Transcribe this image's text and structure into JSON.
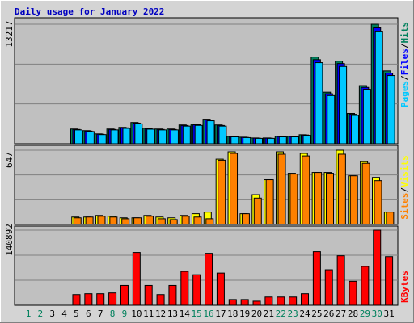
{
  "chart_data": [
    {
      "type": "bar",
      "title": "Daily usage for January 2022",
      "ylim": [
        0,
        13217
      ],
      "yticks": [
        13217
      ],
      "grid": true,
      "series": [
        {
          "name": "Hits",
          "color": "#00805c",
          "values": [
            0,
            0,
            0,
            0,
            1630,
            1450,
            1090,
            1630,
            1810,
            2350,
            1720,
            1630,
            1630,
            2080,
            2170,
            2715,
            2080,
            815,
            725,
            635,
            635,
            815,
            815,
            995,
            9590,
            5700,
            9140,
            3350,
            6425,
            13217,
            8050
          ]
        },
        {
          "name": "Files",
          "color": "#0000ff",
          "values": [
            0,
            0,
            0,
            0,
            1580,
            1400,
            1050,
            1580,
            1760,
            2280,
            1670,
            1580,
            1580,
            2020,
            2100,
            2630,
            2020,
            790,
            700,
            615,
            615,
            790,
            790,
            965,
            9300,
            5530,
            8870,
            3250,
            6230,
            12820,
            7810
          ]
        },
        {
          "name": "Pages",
          "color": "#00c8ff",
          "values": [
            0,
            0,
            0,
            0,
            1530,
            1350,
            1010,
            1530,
            1700,
            2200,
            1610,
            1530,
            1530,
            1950,
            2030,
            2540,
            1950,
            760,
            675,
            590,
            590,
            760,
            760,
            930,
            8970,
            5330,
            8550,
            3130,
            6020,
            12380,
            7540
          ]
        }
      ]
    },
    {
      "type": "bar",
      "ylim": [
        0,
        647
      ],
      "yticks": [
        647
      ],
      "grid": true,
      "series": [
        {
          "name": "Visits",
          "color": "#ffff00",
          "values": [
            0,
            0,
            0,
            0,
            65,
            65,
            79,
            72,
            58,
            58,
            79,
            65,
            58,
            79,
            94,
            108,
            569,
            633,
            94,
            260,
            390,
            633,
            446,
            619,
            453,
            453,
            647,
            424,
            547,
            410,
            108
          ]
        },
        {
          "name": "Sites",
          "color": "#ff8000",
          "values": [
            0,
            0,
            0,
            0,
            58,
            65,
            72,
            65,
            50,
            58,
            72,
            50,
            43,
            72,
            65,
            50,
            560,
            619,
            94,
            230,
            390,
            612,
            439,
            597,
            453,
            446,
            612,
            424,
            533,
            382,
            108
          ]
        }
      ]
    },
    {
      "type": "bar",
      "ylim": [
        0,
        140892
      ],
      "yticks": [
        140892
      ],
      "grid": true,
      "categories": [
        "1",
        "2",
        "3",
        "4",
        "5",
        "6",
        "7",
        "8",
        "9",
        "10",
        "11",
        "12",
        "13",
        "14",
        "15",
        "16",
        "17",
        "18",
        "19",
        "20",
        "21",
        "22",
        "23",
        "24",
        "25",
        "26",
        "27",
        "28",
        "29",
        "30",
        "31"
      ],
      "weekend_indices": [
        0,
        1,
        7,
        8,
        14,
        15,
        21,
        22,
        28,
        29
      ],
      "weekend_color": "#00805c",
      "series": [
        {
          "name": "KBytes",
          "color": "#ff0000",
          "values": [
            0,
            0,
            0,
            0,
            20100,
            21700,
            21700,
            23200,
            37200,
            99100,
            37200,
            20100,
            37200,
            63500,
            57300,
            97500,
            60400,
            10800,
            10800,
            7700,
            15500,
            15500,
            15500,
            21700,
            100600,
            66600,
            92900,
            44900,
            72800,
            140892,
            91300
          ]
        }
      ]
    }
  ]
}
